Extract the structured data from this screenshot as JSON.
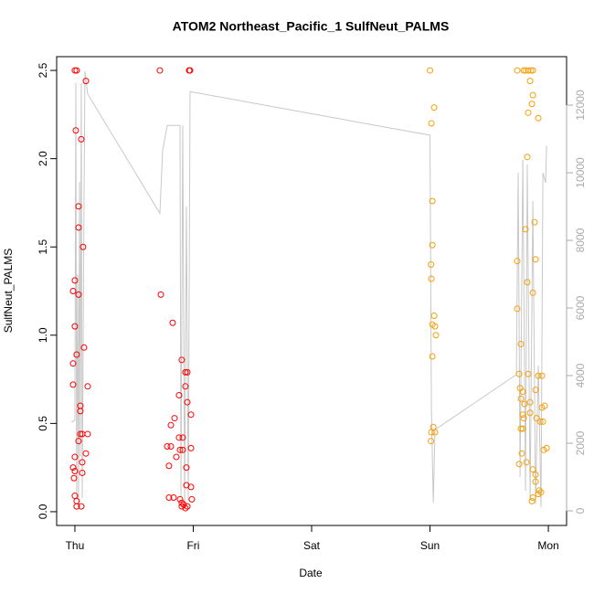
{
  "chart_data": {
    "type": "scatter",
    "title": "ATOM2 Northeast_Pacific_1 SulfNeut_PALMS",
    "x_label": "Date",
    "y_label": "SulfNeut_PALMS",
    "xlim": [
      -0.154,
      4.154
    ],
    "xticks": [
      {
        "value": 0,
        "label": "Thu"
      },
      {
        "value": 1,
        "label": "Fri"
      },
      {
        "value": 2,
        "label": "Sat"
      },
      {
        "value": 3,
        "label": "Sun"
      },
      {
        "value": 4,
        "label": "Mon"
      }
    ],
    "ylim": [
      -0.078,
      2.578
    ],
    "yticks": [
      {
        "value": 0,
        "label": "0.0"
      },
      {
        "value": 0.5,
        "label": "0.5"
      },
      {
        "value": 1,
        "label": "1.0"
      },
      {
        "value": 1.5,
        "label": "1.5"
      },
      {
        "value": 2,
        "label": "2.0"
      },
      {
        "value": 2.5,
        "label": "2.5"
      }
    ],
    "y2lim": [
      -432,
      13434
    ],
    "y2ticks": [
      0,
      2000,
      4000,
      6000,
      8000,
      10000,
      12000
    ],
    "series": [
      {
        "color": "#ff0000",
        "mode": "points",
        "x": [
          -0.015,
          0,
          0.008,
          0.015,
          0,
          0.031,
          0.031,
          0.054,
          0.069,
          0.093,
          0,
          0.015,
          -0.015,
          -0.015,
          0.108,
          0.077,
          0.046,
          0.046,
          0.046,
          0.062,
          0.108,
          0.031,
          0,
          0.093,
          0.062,
          -0.015,
          0,
          0.062,
          -0.008,
          0,
          0.015,
          0.015,
          0.054,
          0.031,
          0.718,
          0.726,
          0.826,
          0.965,
          0.973,
          0.903,
          0.95,
          0.934,
          0.934,
          0.95,
          0.88,
          0.842,
          0.811,
          0.88,
          0.911,
          0.981,
          0.78,
          0.811,
          0.888,
          0.911,
          0.795,
          0.857,
          0.942,
          0.942,
          0.981,
          0.795,
          0.834,
          0.888,
          0.903,
          0.919,
          0.95,
          0.903,
          0.988,
          0.934,
          0.981
        ],
        "values": [
          1.25,
          1.31,
          2.16,
          2.5,
          2.5,
          1.73,
          1.61,
          2.11,
          1.5,
          2.44,
          1.05,
          0.89,
          0.84,
          0.72,
          0.71,
          0.93,
          0.6,
          0.57,
          0.44,
          0.44,
          0.44,
          0.4,
          0.31,
          0.33,
          0.28,
          0.25,
          0.23,
          0.22,
          0.19,
          0.09,
          0.06,
          0.03,
          0.03,
          1.23,
          2.5,
          1.23,
          1.07,
          2.5,
          2.5,
          0.86,
          0.79,
          0.79,
          0.71,
          0.62,
          0.66,
          0.53,
          0.49,
          0.42,
          0.42,
          0.36,
          0.37,
          0.37,
          0.35,
          0.35,
          0.26,
          0.31,
          0.25,
          0.15,
          0.14,
          0.08,
          0.08,
          0.07,
          0.05,
          0.04,
          0.03,
          0.03,
          0.07,
          0.02,
          0.55
        ]
      },
      {
        "color": "#f5a00a",
        "mode": "points",
        "x": [
          3.0,
          3.035,
          3.012,
          3.02,
          3.02,
          3.008,
          3.012,
          3.035,
          3.02,
          3.042,
          3.05,
          3.02,
          3.028,
          3.012,
          3.042,
          3.008,
          3.737,
          3.807,
          3.83,
          3.853,
          3.869,
          3.792,
          3.846,
          3.869,
          3.861,
          3.83,
          3.915,
          3.822,
          3.884,
          3.807,
          3.737,
          3.892,
          3.822,
          3.869,
          3.737,
          3.768,
          3.753,
          3.83,
          3.915,
          3.946,
          3.761,
          3.784,
          3.768,
          3.799,
          3.846,
          3.892,
          3.784,
          3.792,
          3.846,
          3.9,
          3.946,
          3.969,
          3.931,
          3.954,
          3.768,
          3.784,
          3.961,
          3.985,
          3.753,
          3.776,
          3.869,
          3.892,
          3.892,
          3.923,
          3.938,
          3.869,
          3.861,
          3.915,
          3.815
        ],
        "values": [
          2.5,
          2.29,
          2.2,
          1.76,
          1.51,
          1.4,
          1.32,
          1.11,
          1.06,
          1.05,
          1.0,
          0.88,
          0.48,
          0.45,
          0.45,
          0.4,
          2.5,
          2.5,
          2.5,
          2.5,
          2.5,
          2.5,
          2.44,
          2.36,
          2.31,
          2.26,
          2.23,
          2.01,
          1.64,
          1.6,
          1.42,
          1.43,
          1.3,
          1.24,
          1.15,
          0.95,
          0.78,
          0.78,
          0.77,
          0.77,
          0.7,
          0.68,
          0.64,
          0.61,
          0.62,
          0.69,
          0.55,
          0.53,
          0.56,
          0.53,
          0.59,
          0.6,
          0.51,
          0.51,
          0.47,
          0.47,
          0.35,
          0.36,
          0.27,
          0.33,
          0.24,
          0.21,
          0.17,
          0.12,
          0.11,
          0.08,
          0.06,
          0.1,
          0.28
        ]
      },
      {
        "color": "#c8c8c8",
        "mode": "line",
        "axis": "y2",
        "x": [
          -0.031,
          0,
          0.008,
          0.015,
          0.023,
          0.031,
          0.039,
          0.046,
          0.054,
          0.062,
          0.077,
          0.085,
          0.108,
          0.718,
          0.741,
          0.78,
          0.888,
          0.896,
          0.911,
          0.927,
          0.942,
          0.958,
          0.973,
          3.0,
          3.012,
          3.028,
          3.042,
          3.73,
          3.745,
          3.761,
          3.784,
          3.807,
          3.822,
          3.846,
          3.869,
          3.892,
          3.915,
          3.938,
          3.954,
          3.977,
          3.985
        ],
        "values": [
          2620,
          2680,
          12650,
          380,
          7000,
          200,
          9730,
          1600,
          12650,
          380,
          9000,
          13000,
          12330,
          8800,
          10650,
          11400,
          11400,
          400,
          11400,
          200,
          9000,
          300,
          12400,
          11110,
          3000,
          240,
          2400,
          4030,
          10000,
          1000,
          10380,
          600,
          10240,
          300,
          9160,
          200,
          4300,
          100,
          10000,
          9700,
          10800
        ]
      }
    ]
  }
}
